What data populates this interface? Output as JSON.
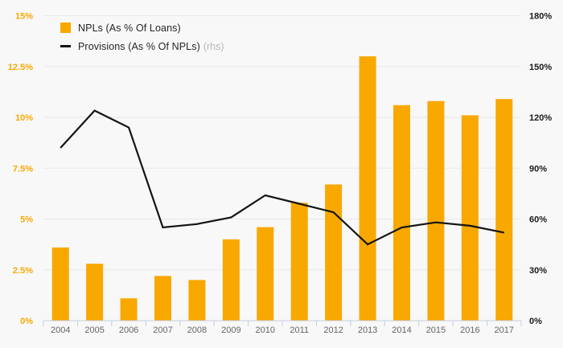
{
  "colors": {
    "background": "#F8F8F8",
    "bar": "#F9A800",
    "line": "#141414",
    "grid": "#E9E9E9",
    "axis_line": "#C3CEE0",
    "left_axis_label": "#F9A800",
    "right_axis_label": "#1A1A1A",
    "year_label": "#646464",
    "legend_text": "#262626",
    "rhs_tag": "#B8B8B8"
  },
  "legend": {
    "items": [
      {
        "label": "NPLs (As % Of Loans)",
        "swatch": "square",
        "suffix": ""
      },
      {
        "label": "Provisions (As % Of NPLs)",
        "swatch": "line",
        "suffix": "(rhs)"
      }
    ]
  },
  "chart_data": {
    "type": "bar",
    "subtype": "combo-bar-line-dual-axis",
    "categories": [
      "2004",
      "2005",
      "2006",
      "2007",
      "2008",
      "2009",
      "2010",
      "2011",
      "2012",
      "2013",
      "2014",
      "2015",
      "2016",
      "2017"
    ],
    "series": [
      {
        "name": "NPLs (As % Of Loans)",
        "type": "bar",
        "axis": "left",
        "color": "#F9A800",
        "values": [
          3.6,
          2.8,
          1.1,
          2.2,
          2.0,
          4.0,
          4.6,
          5.8,
          6.7,
          13.0,
          10.6,
          10.8,
          10.1,
          10.9
        ]
      },
      {
        "name": "Provisions (As % Of NPLs)",
        "suffix": "(rhs)",
        "type": "line",
        "axis": "right",
        "color": "#141414",
        "values": [
          102,
          124,
          114,
          55,
          57,
          61,
          74,
          69,
          64,
          45,
          55,
          58,
          56,
          52
        ]
      }
    ],
    "left_axis": {
      "min": 0,
      "max": 15,
      "ticks": [
        0,
        2.5,
        5,
        7.5,
        10,
        12.5,
        15
      ],
      "labels": [
        "0%",
        "2.5%",
        "5%",
        "7.5%",
        "10%",
        "12.5%",
        "15%"
      ]
    },
    "right_axis": {
      "min": 0,
      "max": 180,
      "ticks": [
        0,
        30,
        60,
        90,
        120,
        150,
        180
      ],
      "labels": [
        "0%",
        "30%",
        "60%",
        "90%",
        "120%",
        "150%",
        "180%"
      ]
    },
    "grid": true,
    "legend_position": "top-left",
    "title": "",
    "xlabel": "",
    "ylabel": ""
  }
}
